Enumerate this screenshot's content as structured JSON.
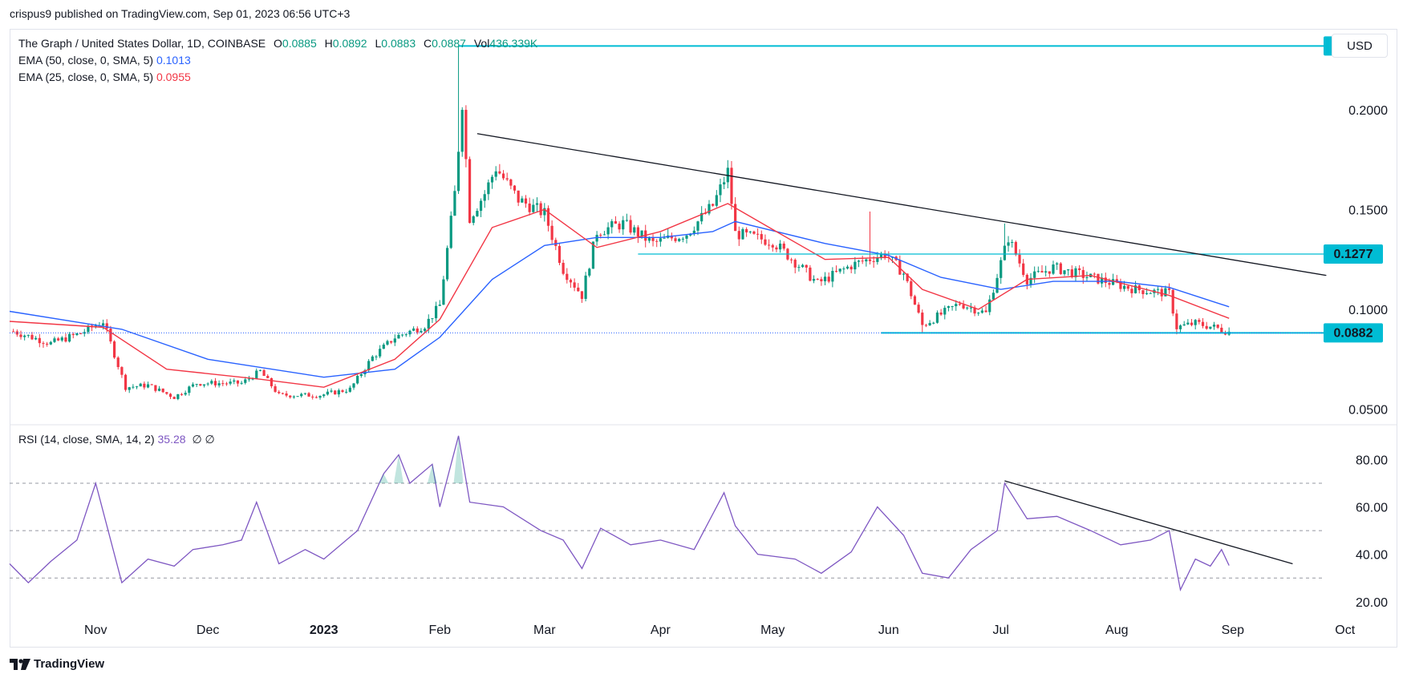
{
  "publisher": "crispus9 published on TradingView.com, Sep 01, 2023 06:56 UTC+3",
  "currency": "USD",
  "brand": "TradingView",
  "legend": {
    "symbol": "The Graph / United States Dollar, 1D, COINBASE",
    "ohlc": [
      {
        "k": "O",
        "v": "0.0885"
      },
      {
        "k": "H",
        "v": "0.0892"
      },
      {
        "k": "L",
        "v": "0.0883"
      },
      {
        "k": "C",
        "v": "0.0887"
      },
      {
        "k": "Vol",
        "v": "436.339K"
      }
    ],
    "ema50_label": "EMA (50, close, 0, SMA, 5)",
    "ema50_value": "0.1013",
    "ema25_label": "EMA (25, close, 0, SMA, 5)",
    "ema25_value": "0.0955",
    "rsi_label": "RSI (14, close, SMA, 14, 2)",
    "rsi_value": "35.28",
    "rsi_extra": "∅ ∅"
  },
  "colors": {
    "up": "#089981",
    "down": "#f23645",
    "ema50": "#2962ff",
    "ema25": "#f23645",
    "rsi": "#7e57c2",
    "level": "#00bcd4",
    "trendline": "#131722",
    "label_bg": "#00bcd4"
  },
  "chart_data": [
    {
      "type": "candlestick",
      "title": "The Graph / United States Dollar, 1D, COINBASE",
      "x_ticks": [
        "Nov",
        "Dec",
        "2023",
        "Feb",
        "Mar",
        "Apr",
        "May",
        "Jun",
        "Jul",
        "Aug",
        "Sep",
        "Oct"
      ],
      "x_tick_dates": [
        "2022-11-01",
        "2022-12-01",
        "2023-01-01",
        "2023-02-01",
        "2023-03-01",
        "2023-04-01",
        "2023-05-01",
        "2023-06-01",
        "2023-07-01",
        "2023-08-01",
        "2023-09-01",
        "2023-10-01"
      ],
      "x_range": [
        "2022-10-09",
        "2023-10-15"
      ],
      "y_ticks": [
        0.05,
        0.1,
        0.15,
        0.2
      ],
      "y_tick_labels": [
        "0.0500",
        "0.1000",
        "0.1500",
        "0.2000"
      ],
      "ylim": [
        0.043,
        0.2405
      ],
      "close_path": [
        [
          "2022-10-10",
          0.089
        ],
        [
          "2022-10-20",
          0.083
        ],
        [
          "2022-10-28",
          0.088
        ],
        [
          "2022-11-03",
          0.094
        ],
        [
          "2022-11-09",
          0.061
        ],
        [
          "2022-11-15",
          0.062
        ],
        [
          "2022-11-22",
          0.056
        ],
        [
          "2022-11-28",
          0.063
        ],
        [
          "2022-12-10",
          0.063
        ],
        [
          "2022-12-15",
          0.069
        ],
        [
          "2022-12-20",
          0.057
        ],
        [
          "2022-12-31",
          0.057
        ],
        [
          "2023-01-08",
          0.06
        ],
        [
          "2023-01-14",
          0.076
        ],
        [
          "2023-01-20",
          0.086
        ],
        [
          "2023-01-28",
          0.092
        ],
        [
          "2023-02-01",
          0.102
        ],
        [
          "2023-02-05",
          0.158
        ],
        [
          "2023-02-07",
          0.204
        ],
        [
          "2023-02-09",
          0.146
        ],
        [
          "2023-02-13",
          0.158
        ],
        [
          "2023-02-16",
          0.171
        ],
        [
          "2023-02-22",
          0.155
        ],
        [
          "2023-03-01",
          0.148
        ],
        [
          "2023-03-06",
          0.12
        ],
        [
          "2023-03-11",
          0.107
        ],
        [
          "2023-03-15",
          0.139
        ],
        [
          "2023-03-22",
          0.143
        ],
        [
          "2023-03-30",
          0.133
        ],
        [
          "2023-04-08",
          0.138
        ],
        [
          "2023-04-15",
          0.152
        ],
        [
          "2023-04-19",
          0.169
        ],
        [
          "2023-04-21",
          0.138
        ],
        [
          "2023-05-01",
          0.134
        ],
        [
          "2023-05-08",
          0.122
        ],
        [
          "2023-05-13",
          0.113
        ],
        [
          "2023-05-22",
          0.122
        ],
        [
          "2023-05-31",
          0.128
        ],
        [
          "2023-06-05",
          0.118
        ],
        [
          "2023-06-10",
          0.092
        ],
        [
          "2023-06-20",
          0.103
        ],
        [
          "2023-06-27",
          0.098
        ],
        [
          "2023-07-03",
          0.136
        ],
        [
          "2023-07-08",
          0.115
        ],
        [
          "2023-07-15",
          0.121
        ],
        [
          "2023-07-25",
          0.116
        ],
        [
          "2023-08-06",
          0.11
        ],
        [
          "2023-08-15",
          0.108
        ],
        [
          "2023-08-17",
          0.091
        ],
        [
          "2023-08-22",
          0.093
        ],
        [
          "2023-08-27",
          0.091
        ],
        [
          "2023-08-31",
          0.0887
        ]
      ],
      "highs_lows": [
        {
          "date": "2023-02-06",
          "high": 0.2319,
          "label": "0.2319"
        },
        {
          "date": "2023-03-12",
          "low": 0.104
        },
        {
          "date": "2023-05-27",
          "high": 0.149
        },
        {
          "date": "2023-07-02",
          "high": 0.143
        },
        {
          "date": "2023-06-10",
          "low": 0.088
        },
        {
          "date": "2023-08-17",
          "low": 0.0875
        }
      ],
      "series": [
        {
          "name": "EMA (50, close, 0, SMA, 5)",
          "last": 0.1013,
          "points": [
            [
              "2022-10-09",
              0.099
            ],
            [
              "2022-11-08",
              0.09
            ],
            [
              "2022-12-01",
              0.075
            ],
            [
              "2023-01-01",
              0.066
            ],
            [
              "2023-01-20",
              0.07
            ],
            [
              "2023-02-01",
              0.086
            ],
            [
              "2023-02-15",
              0.115
            ],
            [
              "2023-03-01",
              0.132
            ],
            [
              "2023-03-15",
              0.136
            ],
            [
              "2023-04-01",
              0.136
            ],
            [
              "2023-04-15",
              0.139
            ],
            [
              "2023-04-21",
              0.144
            ],
            [
              "2023-05-15",
              0.133
            ],
            [
              "2023-06-01",
              0.127
            ],
            [
              "2023-06-15",
              0.116
            ],
            [
              "2023-07-01",
              0.11
            ],
            [
              "2023-07-15",
              0.114
            ],
            [
              "2023-08-01",
              0.114
            ],
            [
              "2023-08-15",
              0.111
            ],
            [
              "2023-08-31",
              0.1013
            ]
          ]
        },
        {
          "name": "EMA (25, close, 0, SMA, 5)",
          "last": 0.0955,
          "points": [
            [
              "2022-10-09",
              0.094
            ],
            [
              "2022-11-03",
              0.091
            ],
            [
              "2022-11-20",
              0.07
            ],
            [
              "2022-12-15",
              0.065
            ],
            [
              "2023-01-01",
              0.061
            ],
            [
              "2023-01-20",
              0.075
            ],
            [
              "2023-02-01",
              0.095
            ],
            [
              "2023-02-15",
              0.141
            ],
            [
              "2023-03-01",
              0.15
            ],
            [
              "2023-03-15",
              0.131
            ],
            [
              "2023-04-01",
              0.139
            ],
            [
              "2023-04-19",
              0.153
            ],
            [
              "2023-05-01",
              0.14
            ],
            [
              "2023-05-15",
              0.125
            ],
            [
              "2023-06-01",
              0.126
            ],
            [
              "2023-06-10",
              0.11
            ],
            [
              "2023-06-25",
              0.1
            ],
            [
              "2023-07-08",
              0.115
            ],
            [
              "2023-07-25",
              0.117
            ],
            [
              "2023-08-15",
              0.107
            ],
            [
              "2023-08-31",
              0.0955
            ]
          ]
        }
      ],
      "levels": [
        {
          "value": 0.2319,
          "label": "0.2319",
          "from": "2023-02-06"
        },
        {
          "value": 0.1277,
          "label": "0.1277",
          "from": "2023-03-26"
        },
        {
          "value": 0.0882,
          "label": "0.0882",
          "from": "2023-05-30"
        }
      ],
      "trendline": [
        [
          "2023-02-11",
          0.188
        ],
        [
          "2023-09-26",
          0.117
        ]
      ],
      "last_price": 0.0882
    },
    {
      "type": "line",
      "title": "RSI (14, close, SMA, 14, 2)",
      "y_ticks": [
        20,
        40,
        60,
        80
      ],
      "y_tick_labels": [
        "20.00",
        "40.00",
        "60.00",
        "80.00"
      ],
      "ylim": [
        13.5,
        94
      ],
      "bands": [
        30,
        50,
        70
      ],
      "series": [
        {
          "name": "RSI (14, close, SMA, 14, 2)",
          "last": 35.28,
          "points": [
            [
              "2022-10-09",
              36
            ],
            [
              "2022-10-14",
              28
            ],
            [
              "2022-10-20",
              37
            ],
            [
              "2022-10-27",
              46
            ],
            [
              "2022-11-01",
              70
            ],
            [
              "2022-11-08",
              28
            ],
            [
              "2022-11-15",
              38
            ],
            [
              "2022-11-22",
              35
            ],
            [
              "2022-11-27",
              42
            ],
            [
              "2022-12-05",
              44
            ],
            [
              "2022-12-10",
              46
            ],
            [
              "2022-12-14",
              62
            ],
            [
              "2022-12-20",
              36
            ],
            [
              "2022-12-27",
              42
            ],
            [
              "2023-01-01",
              38
            ],
            [
              "2023-01-10",
              50
            ],
            [
              "2023-01-17",
              74
            ],
            [
              "2023-01-21",
              82
            ],
            [
              "2023-01-24",
              70
            ],
            [
              "2023-01-30",
              78
            ],
            [
              "2023-02-01",
              60
            ],
            [
              "2023-02-06",
              90
            ],
            [
              "2023-02-09",
              62
            ],
            [
              "2023-02-18",
              60
            ],
            [
              "2023-02-28",
              50
            ],
            [
              "2023-03-06",
              46
            ],
            [
              "2023-03-11",
              34
            ],
            [
              "2023-03-16",
              51
            ],
            [
              "2023-03-24",
              44
            ],
            [
              "2023-04-01",
              46
            ],
            [
              "2023-04-10",
              42
            ],
            [
              "2023-04-18",
              66
            ],
            [
              "2023-04-21",
              52
            ],
            [
              "2023-04-27",
              40
            ],
            [
              "2023-05-07",
              38
            ],
            [
              "2023-05-14",
              32
            ],
            [
              "2023-05-22",
              41
            ],
            [
              "2023-05-29",
              60
            ],
            [
              "2023-06-05",
              48
            ],
            [
              "2023-06-10",
              32
            ],
            [
              "2023-06-17",
              30
            ],
            [
              "2023-06-23",
              42
            ],
            [
              "2023-06-30",
              50
            ],
            [
              "2023-07-02",
              70
            ],
            [
              "2023-07-08",
              55
            ],
            [
              "2023-07-16",
              56
            ],
            [
              "2023-07-25",
              50
            ],
            [
              "2023-08-02",
              44
            ],
            [
              "2023-08-10",
              46
            ],
            [
              "2023-08-15",
              50
            ],
            [
              "2023-08-18",
              25
            ],
            [
              "2023-08-22",
              38
            ],
            [
              "2023-08-26",
              35
            ],
            [
              "2023-08-29",
              42
            ],
            [
              "2023-08-31",
              35.28
            ]
          ]
        }
      ],
      "trendline": [
        [
          "2023-07-02",
          71
        ],
        [
          "2023-09-17",
          36
        ]
      ]
    }
  ],
  "x_axis_labels": [
    "Nov",
    "Dec",
    "2023",
    "Feb",
    "Mar",
    "Apr",
    "May",
    "Jun",
    "Jul",
    "Aug",
    "Sep",
    "Oct"
  ]
}
